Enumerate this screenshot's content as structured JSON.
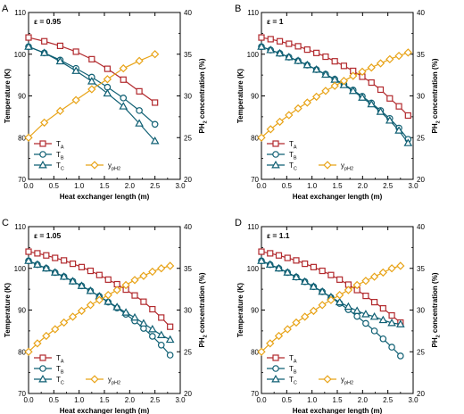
{
  "figure": {
    "panels": [
      {
        "letter": "A",
        "epsilon_label": "ε = 0.95"
      },
      {
        "letter": "B",
        "epsilon_label": "ε = 1"
      },
      {
        "letter": "C",
        "epsilon_label": "ε = 1.05"
      },
      {
        "letter": "D",
        "epsilon_label": "ε = 1.1"
      }
    ],
    "xlabel": "Heat exchanger length (m)",
    "ylabel_left": "Temperature (K)",
    "ylabel_right_parts": [
      "PH",
      "2",
      " concentration (%)"
    ],
    "x_ticks": [
      "0.0",
      "0.5",
      "1.0",
      "1.5",
      "2.0",
      "2.5",
      "3.0"
    ],
    "y_left_ticks": [
      "70",
      "80",
      "90",
      "100",
      "110"
    ],
    "y_right_ticks": [
      "20",
      "25",
      "30",
      "35",
      "40"
    ],
    "legend": [
      {
        "main": "T",
        "sub": "A"
      },
      {
        "main": "T",
        "sub": "B"
      },
      {
        "main": "T",
        "sub": "C"
      },
      {
        "main": "y",
        "sub": "pH2"
      }
    ],
    "colors": {
      "TA": "#b22a2e",
      "TB": "#0f5f73",
      "TC": "#0f5f73",
      "yPH2": "#e8a317"
    },
    "markers": {
      "TA": "square",
      "TB": "circle",
      "TC": "triangle",
      "yPH2": "diamond"
    }
  },
  "chart_data": [
    {
      "type": "line",
      "title": "ε = 0.95",
      "xlabel": "Heat exchanger length (m)",
      "ylabel": "Temperature (K)",
      "y2label": "PH2 concentration (%)",
      "xlim": [
        0,
        3.0
      ],
      "ylim": [
        70,
        110
      ],
      "y2lim": [
        20,
        40
      ],
      "series": [
        {
          "name": "TA",
          "axis": "left",
          "x": [
            0,
            0.312,
            0.625,
            0.938,
            1.25,
            1.56,
            1.875,
            2.19,
            2.5
          ],
          "y": [
            104.0,
            103.1,
            102.0,
            100.6,
            98.8,
            96.5,
            93.9,
            91.1,
            88.4
          ]
        },
        {
          "name": "TB",
          "axis": "left",
          "x": [
            0,
            0.312,
            0.625,
            0.938,
            1.25,
            1.56,
            1.875,
            2.19,
            2.5
          ],
          "y": [
            101.8,
            100.3,
            98.6,
            96.6,
            94.5,
            92.1,
            89.5,
            86.5,
            83.2
          ]
        },
        {
          "name": "TC",
          "axis": "left",
          "x": [
            0,
            0.312,
            0.625,
            0.938,
            1.25,
            1.56,
            1.875,
            2.19,
            2.5
          ],
          "y": [
            101.8,
            100.3,
            98.3,
            96.0,
            93.5,
            90.6,
            87.5,
            83.4,
            79.2
          ]
        },
        {
          "name": "ypH2",
          "axis": "right",
          "x": [
            0,
            0.312,
            0.625,
            0.938,
            1.25,
            1.56,
            1.875,
            2.19,
            2.5
          ],
          "y": [
            25.0,
            26.8,
            28.2,
            29.5,
            30.8,
            32.0,
            33.3,
            34.2,
            35.0
          ]
        }
      ]
    },
    {
      "type": "line",
      "title": "ε = 1",
      "xlabel": "Heat exchanger length (m)",
      "ylabel": "Temperature (K)",
      "y2label": "PH2 concentration (%)",
      "xlim": [
        0,
        3.0
      ],
      "ylim": [
        70,
        110
      ],
      "y2lim": [
        20,
        40
      ],
      "series": [
        {
          "name": "TA",
          "axis": "left",
          "x": [
            0,
            0.181,
            0.363,
            0.544,
            0.725,
            0.906,
            1.088,
            1.269,
            1.45,
            1.631,
            1.813,
            1.994,
            2.175,
            2.356,
            2.538,
            2.719,
            2.9
          ],
          "y": [
            104.0,
            103.6,
            103.1,
            102.5,
            101.9,
            101.1,
            100.3,
            99.4,
            98.3,
            97.2,
            96.0,
            94.6,
            93.2,
            91.5,
            89.4,
            87.5,
            85.3
          ]
        },
        {
          "name": "TB",
          "axis": "left",
          "x": [
            0,
            0.181,
            0.363,
            0.544,
            0.725,
            0.906,
            1.088,
            1.269,
            1.45,
            1.631,
            1.813,
            1.994,
            2.175,
            2.356,
            2.538,
            2.719,
            2.9
          ],
          "y": [
            101.8,
            101.0,
            100.2,
            99.3,
            98.4,
            97.4,
            96.3,
            95.2,
            94.0,
            92.8,
            91.4,
            89.9,
            88.3,
            86.5,
            84.6,
            82.3,
            79.6
          ]
        },
        {
          "name": "TC",
          "axis": "left",
          "x": [
            0,
            0.181,
            0.363,
            0.544,
            0.725,
            0.906,
            1.088,
            1.269,
            1.45,
            1.631,
            1.813,
            1.994,
            2.175,
            2.356,
            2.538,
            2.719,
            2.9
          ],
          "y": [
            101.8,
            101.0,
            100.2,
            99.3,
            98.4,
            97.4,
            96.3,
            95.1,
            93.9,
            92.6,
            91.2,
            89.6,
            88.0,
            86.2,
            84.1,
            81.7,
            78.7
          ]
        },
        {
          "name": "ypH2",
          "axis": "right",
          "x": [
            0,
            0.181,
            0.363,
            0.544,
            0.725,
            0.906,
            1.088,
            1.269,
            1.45,
            1.631,
            1.813,
            1.994,
            2.175,
            2.356,
            2.538,
            2.719,
            2.9
          ],
          "y": [
            25.0,
            26.0,
            26.9,
            27.7,
            28.5,
            29.2,
            29.9,
            30.6,
            31.2,
            31.8,
            32.4,
            32.9,
            33.4,
            33.9,
            34.4,
            34.8,
            35.2
          ]
        }
      ]
    },
    {
      "type": "line",
      "title": "ε = 1.05",
      "xlabel": "Heat exchanger length (m)",
      "ylabel": "Temperature (K)",
      "y2label": "PH2 concentration (%)",
      "xlim": [
        0,
        3.0
      ],
      "ylim": [
        70,
        110
      ],
      "y2lim": [
        20,
        40
      ],
      "series": [
        {
          "name": "TA",
          "axis": "left",
          "x": [
            0,
            0.175,
            0.35,
            0.525,
            0.7,
            0.875,
            1.05,
            1.225,
            1.4,
            1.575,
            1.75,
            1.925,
            2.1,
            2.275,
            2.45,
            2.625,
            2.8
          ],
          "y": [
            104.0,
            103.6,
            103.1,
            102.5,
            101.9,
            101.1,
            100.3,
            99.4,
            98.4,
            97.3,
            96.2,
            94.9,
            93.5,
            92.0,
            90.2,
            88.2,
            86.0
          ]
        },
        {
          "name": "TB",
          "axis": "left",
          "x": [
            0,
            0.175,
            0.35,
            0.525,
            0.7,
            0.875,
            1.05,
            1.225,
            1.4,
            1.575,
            1.75,
            1.925,
            2.1,
            2.275,
            2.45,
            2.625,
            2.8
          ],
          "y": [
            101.8,
            100.9,
            100.0,
            99.0,
            98.0,
            96.9,
            95.8,
            94.6,
            93.3,
            91.9,
            90.5,
            89.0,
            87.4,
            85.6,
            83.7,
            81.6,
            79.2
          ]
        },
        {
          "name": "TC",
          "axis": "left",
          "x": [
            0,
            0.175,
            0.35,
            0.525,
            0.7,
            0.875,
            1.05,
            1.225,
            1.4,
            1.575,
            1.75,
            1.925,
            2.1,
            2.275,
            2.45,
            2.625,
            2.8
          ],
          "y": [
            101.8,
            100.9,
            100.0,
            99.0,
            98.0,
            96.9,
            95.8,
            94.6,
            93.3,
            92.0,
            90.7,
            89.4,
            88.2,
            86.8,
            85.4,
            84.0,
            82.9
          ]
        },
        {
          "name": "ypH2",
          "axis": "right",
          "x": [
            0,
            0.175,
            0.35,
            0.525,
            0.7,
            0.875,
            1.05,
            1.225,
            1.4,
            1.575,
            1.75,
            1.925,
            2.1,
            2.275,
            2.45,
            2.625,
            2.8
          ],
          "y": [
            25.0,
            26.0,
            26.9,
            27.7,
            28.5,
            29.2,
            29.9,
            30.6,
            31.2,
            31.8,
            32.4,
            33.0,
            33.6,
            34.1,
            34.6,
            35.0,
            35.3
          ]
        }
      ]
    },
    {
      "type": "line",
      "title": "ε = 1.1",
      "xlabel": "Heat exchanger length (m)",
      "ylabel": "Temperature (K)",
      "y2label": "PH2 concentration (%)",
      "xlim": [
        0,
        3.0
      ],
      "ylim": [
        70,
        110
      ],
      "y2lim": [
        20,
        40
      ],
      "series": [
        {
          "name": "TA",
          "axis": "left",
          "x": [
            0,
            0.172,
            0.344,
            0.516,
            0.688,
            0.859,
            1.031,
            1.203,
            1.375,
            1.547,
            1.719,
            1.891,
            2.063,
            2.234,
            2.406,
            2.578,
            2.75
          ],
          "y": [
            104.0,
            103.6,
            103.1,
            102.5,
            101.9,
            101.1,
            100.3,
            99.4,
            98.4,
            97.3,
            96.1,
            94.8,
            93.4,
            91.9,
            90.4,
            88.7,
            87.0
          ]
        },
        {
          "name": "TB",
          "axis": "left",
          "x": [
            0,
            0.172,
            0.344,
            0.516,
            0.688,
            0.859,
            1.031,
            1.203,
            1.375,
            1.547,
            1.719,
            1.891,
            2.063,
            2.234,
            2.406,
            2.578,
            2.75
          ],
          "y": [
            101.8,
            100.9,
            100.0,
            99.0,
            97.9,
            96.8,
            95.6,
            94.4,
            93.0,
            91.6,
            90.1,
            88.5,
            86.8,
            85.0,
            83.1,
            81.1,
            79.0
          ]
        },
        {
          "name": "TC",
          "axis": "left",
          "x": [
            0,
            0.172,
            0.344,
            0.516,
            0.688,
            0.859,
            1.031,
            1.203,
            1.375,
            1.547,
            1.719,
            1.891,
            2.063,
            2.234,
            2.406,
            2.578,
            2.75
          ],
          "y": [
            101.8,
            100.9,
            100.0,
            99.0,
            97.9,
            96.8,
            95.6,
            94.4,
            93.1,
            91.9,
            90.8,
            89.8,
            89.0,
            88.4,
            87.6,
            86.9,
            86.6
          ]
        },
        {
          "name": "ypH2",
          "axis": "right",
          "x": [
            0,
            0.172,
            0.344,
            0.516,
            0.688,
            0.859,
            1.031,
            1.203,
            1.375,
            1.547,
            1.719,
            1.891,
            2.063,
            2.234,
            2.406,
            2.578,
            2.75
          ],
          "y": [
            25.0,
            26.0,
            26.9,
            27.7,
            28.5,
            29.2,
            29.9,
            30.6,
            31.2,
            31.8,
            32.4,
            33.0,
            33.5,
            34.0,
            34.5,
            35.0,
            35.3
          ]
        }
      ]
    }
  ]
}
